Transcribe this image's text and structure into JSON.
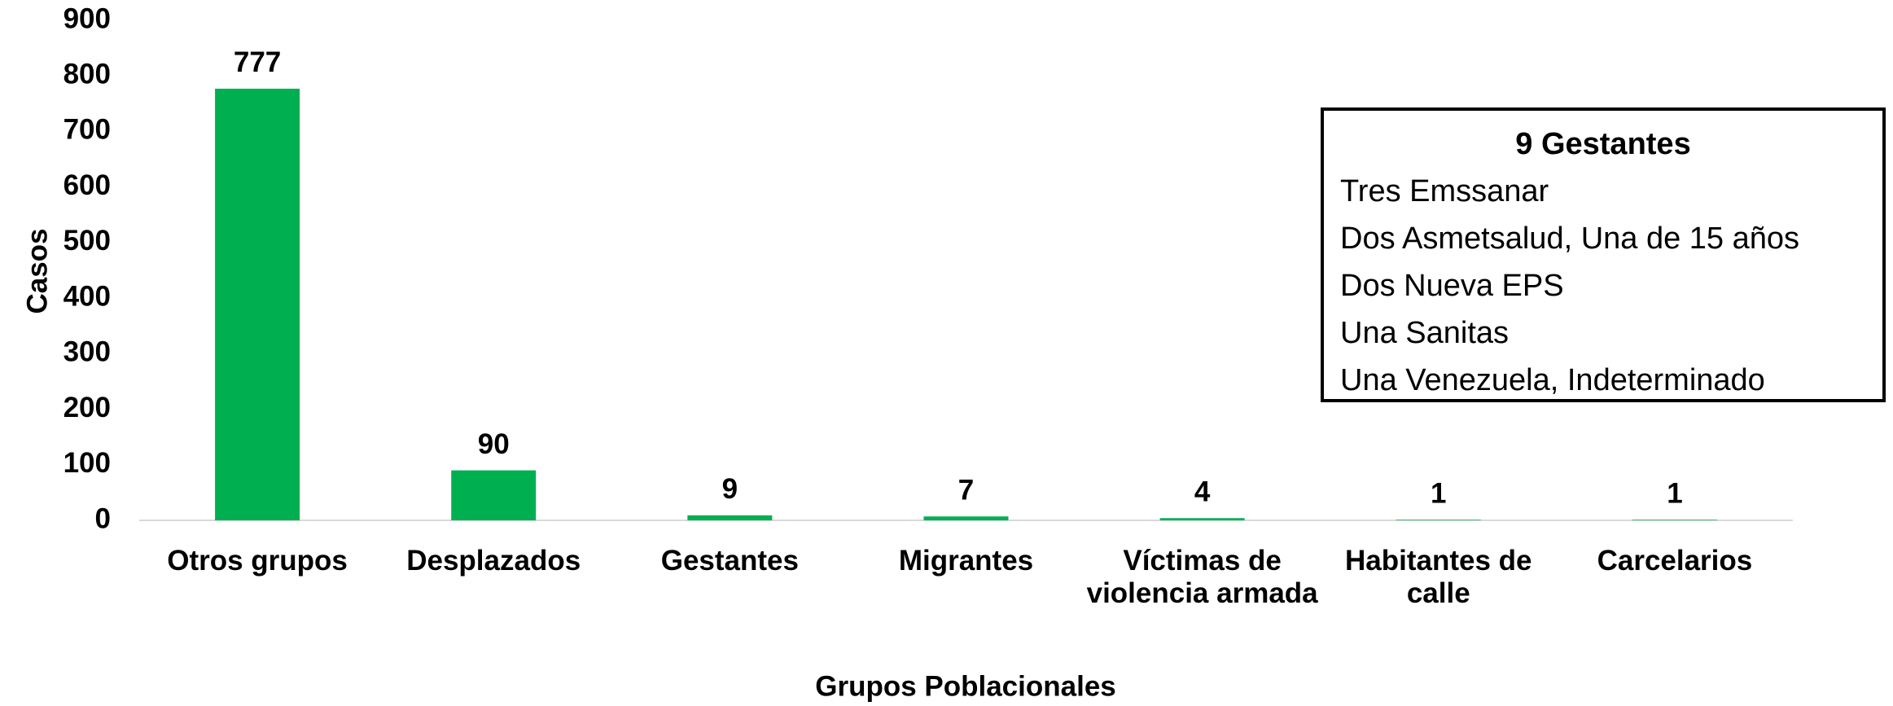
{
  "chart_data": {
    "type": "bar",
    "categories": [
      "Otros grupos",
      "Desplazados",
      "Gestantes",
      "Migrantes",
      "Víctimas de violencia armada",
      "Habitantes de calle",
      "Carcelarios"
    ],
    "values": [
      777,
      90,
      9,
      7,
      4,
      1,
      1
    ],
    "color": "#00b050",
    "ylim": [
      0,
      900
    ],
    "yticks": [
      0,
      100,
      200,
      300,
      400,
      500,
      600,
      700,
      800,
      900
    ],
    "grid": false,
    "y_label": "Casos",
    "x_label": "Grupos Poblacionales",
    "annotation": {
      "title": "9 Gestantes",
      "lines": [
        "Tres Emssanar",
        "Dos Asmetsalud, Una de 15 años",
        "Dos Nueva EPS",
        "Una Sanitas",
        "Una Venezuela, Indeterminado"
      ]
    }
  }
}
